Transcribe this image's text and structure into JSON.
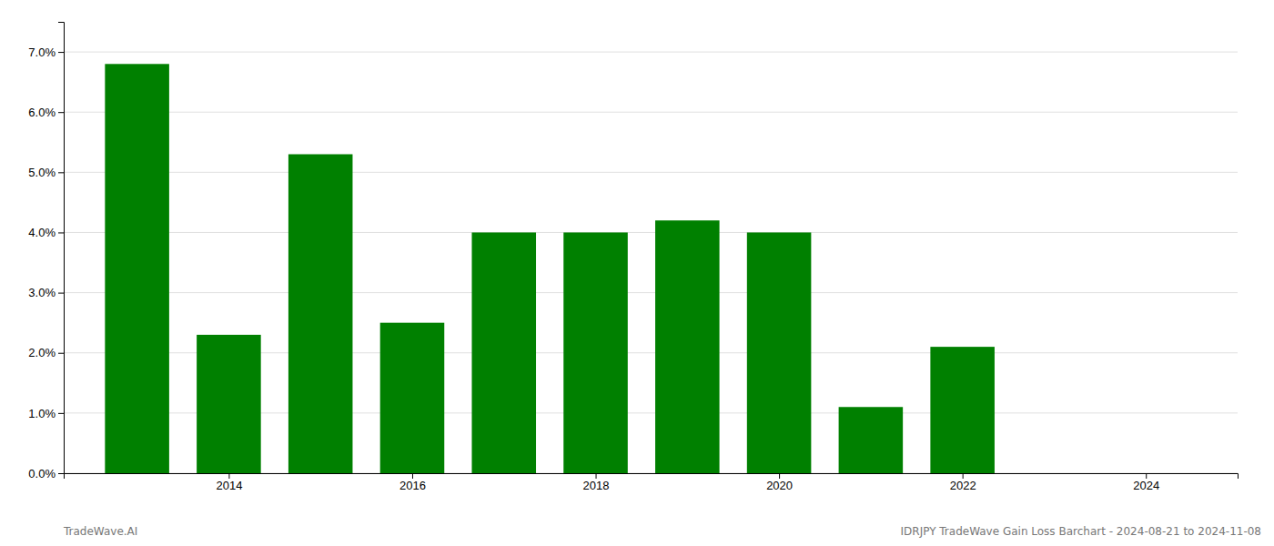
{
  "chart_data": {
    "type": "bar",
    "x": [
      2013,
      2014,
      2015,
      2016,
      2017,
      2018,
      2019,
      2020,
      2021,
      2022
    ],
    "values": [
      0.068,
      0.023,
      0.053,
      0.025,
      0.04,
      0.04,
      0.042,
      0.04,
      0.011,
      0.021
    ],
    "color": "#008000",
    "xlim": [
      2012.2,
      2025.0
    ],
    "xticks": [
      2014,
      2016,
      2018,
      2020,
      2022,
      2024
    ],
    "ylim": [
      0.0,
      0.075
    ],
    "yticks": [
      {
        "value": 0.0,
        "label": "0.0%"
      },
      {
        "value": 0.01,
        "label": "1.0%"
      },
      {
        "value": 0.02,
        "label": "2.0%"
      },
      {
        "value": 0.03,
        "label": "3.0%"
      },
      {
        "value": 0.04,
        "label": "4.0%"
      },
      {
        "value": 0.05,
        "label": "5.0%"
      },
      {
        "value": 0.06,
        "label": "6.0%"
      },
      {
        "value": 0.07,
        "label": "7.0%"
      }
    ],
    "grid": true,
    "annotations": [
      "TradeWave.AI",
      "IDRJPY TradeWave Gain Loss Barchart - 2024-08-21 to 2024-11-08"
    ]
  }
}
